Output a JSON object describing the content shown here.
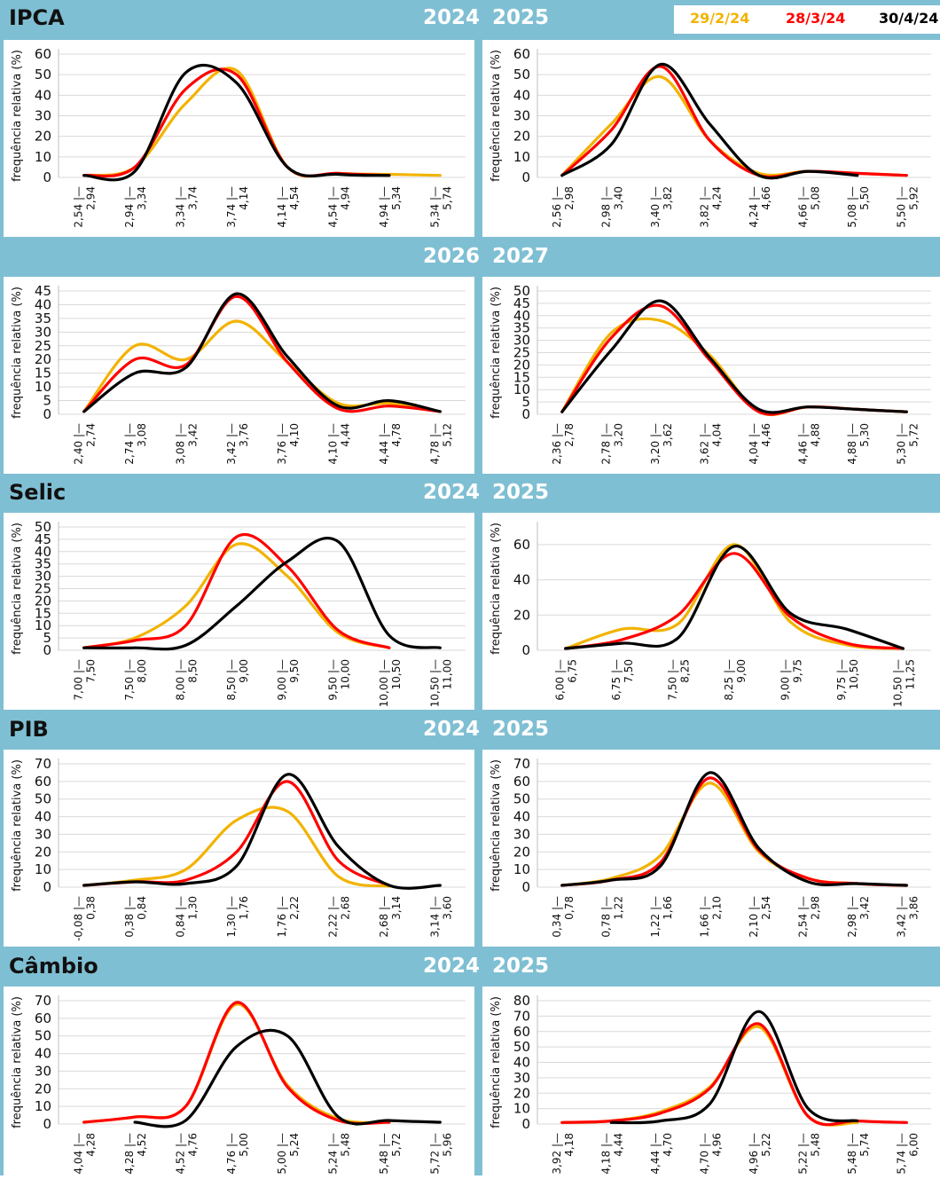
{
  "legend": [
    {
      "label": "29/2/24",
      "color": "#f2b300"
    },
    {
      "label": "28/3/24",
      "color": "#ff0000"
    },
    {
      "label": "30/4/24",
      "color": "#000000"
    }
  ],
  "ylabel": "frequência relativa (%)",
  "sections": [
    {
      "title": "IPCA",
      "years": [
        "2024",
        "2025"
      ]
    },
    {
      "title": "",
      "years": [
        "2026",
        "2027"
      ]
    },
    {
      "title": "Selic",
      "years": [
        "2024",
        "2025"
      ]
    },
    {
      "title": "PIB",
      "years": [
        "2024",
        "2025"
      ]
    },
    {
      "title": "Câmbio",
      "years": [
        "2024",
        "2025"
      ]
    }
  ],
  "chart_data": [
    {
      "type": "line",
      "variable": "IPCA",
      "year": "2024",
      "ylabel": "frequência relativa (%)",
      "ylim": [
        0,
        60
      ],
      "yticks": [
        0,
        10,
        20,
        30,
        40,
        50,
        60
      ],
      "categories": [
        "2,54 |— 2,94",
        "2,94 |— 3,34",
        "3,34 |— 3,74",
        "3,74 |— 4,14",
        "4,14 |— 4,54",
        "4,54 |— 4,94",
        "4,94 |— 5,34",
        "5,34 |— 5,74"
      ],
      "series": [
        {
          "name": "29/2/24",
          "values": [
            1,
            5,
            36,
            52,
            5,
            2,
            1.5,
            1
          ]
        },
        {
          "name": "28/3/24",
          "values": [
            1,
            5,
            43,
            50,
            5,
            2,
            1,
            null
          ]
        },
        {
          "name": "30/4/24",
          "values": [
            1,
            3,
            51,
            46,
            5,
            1.5,
            1,
            null
          ]
        }
      ]
    },
    {
      "type": "line",
      "variable": "IPCA",
      "year": "2025",
      "ylabel": "frequência relativa (%)",
      "ylim": [
        0,
        60
      ],
      "yticks": [
        0,
        10,
        20,
        30,
        40,
        50,
        60
      ],
      "categories": [
        "2,56 |— 2,98",
        "2,98 |— 3,40",
        "3,40 |— 3,82",
        "3,82 |— 4,24",
        "4,24 |— 4,66",
        "4,66 |— 5,08",
        "5,08 |— 5,50",
        "5,50 |— 5,92"
      ],
      "series": [
        {
          "name": "29/2/24",
          "values": [
            1,
            26,
            49,
            18,
            2,
            3,
            2,
            1
          ]
        },
        {
          "name": "28/3/24",
          "values": [
            1,
            23,
            54,
            18,
            1,
            3,
            2,
            1
          ]
        },
        {
          "name": "30/4/24",
          "values": [
            1,
            16,
            55,
            26,
            1,
            3,
            1,
            null
          ]
        }
      ]
    },
    {
      "type": "line",
      "variable": "IPCA",
      "year": "2026",
      "ylabel": "frequência relativa (%)",
      "ylim": [
        0,
        45
      ],
      "yticks": [
        0,
        5,
        10,
        15,
        20,
        25,
        30,
        35,
        40,
        45
      ],
      "categories": [
        "2,40 |— 2,74",
        "2,74 |— 3,08",
        "3,08 |— 3,42",
        "3,42 |— 3,76",
        "3,76 |— 4,10",
        "4,10 |— 4,44",
        "4,44 |— 4,78",
        "4,78 |— 5,12"
      ],
      "series": [
        {
          "name": "29/2/24",
          "values": [
            1,
            25,
            20,
            34,
            19,
            4,
            4,
            1
          ]
        },
        {
          "name": "28/3/24",
          "values": [
            1,
            20,
            18,
            43,
            19,
            2,
            3,
            1
          ]
        },
        {
          "name": "30/4/24",
          "values": [
            1,
            15,
            17,
            44,
            21,
            3,
            5,
            1
          ]
        }
      ]
    },
    {
      "type": "line",
      "variable": "IPCA",
      "year": "2027",
      "ylabel": "frequência relativa (%)",
      "ylim": [
        0,
        50
      ],
      "yticks": [
        0,
        5,
        10,
        15,
        20,
        25,
        30,
        35,
        40,
        45,
        50
      ],
      "categories": [
        "2,36 |— 2,78",
        "2,78 |— 3,20",
        "3,20 |— 3,62",
        "3,62 |— 4,04",
        "4,04 |— 4,46",
        "4,46 |— 4,88",
        "4,88 |— 5,30",
        "5,30 |— 5,72"
      ],
      "series": [
        {
          "name": "29/2/24",
          "values": [
            1,
            33,
            38,
            24,
            1,
            3,
            2,
            1
          ]
        },
        {
          "name": "28/3/24",
          "values": [
            1,
            31,
            44,
            22,
            1,
            3,
            2,
            1
          ]
        },
        {
          "name": "30/4/24",
          "values": [
            1,
            26,
            46,
            23,
            2,
            3,
            2,
            1
          ]
        }
      ]
    },
    {
      "type": "line",
      "variable": "Selic",
      "year": "2024",
      "ylabel": "frequência relativa (%)",
      "ylim": [
        0,
        50
      ],
      "yticks": [
        0,
        5,
        10,
        15,
        20,
        25,
        30,
        35,
        40,
        45,
        50
      ],
      "categories": [
        "7,00 |— 7,50",
        "7,50 |— 8,00",
        "8,00 |— 8,50",
        "8,50 |— 9,00",
        "9,00 |— 9,50",
        "9,50 |— 10,00",
        "10,00 |— 10,50",
        "10,50 |— 11,00"
      ],
      "series": [
        {
          "name": "29/2/24",
          "values": [
            1,
            5,
            18,
            43,
            30,
            7,
            1,
            null
          ]
        },
        {
          "name": "28/3/24",
          "values": [
            1,
            4,
            10,
            46,
            34,
            8,
            1,
            null
          ]
        },
        {
          "name": "30/4/24",
          "values": [
            1,
            1,
            2,
            18,
            36,
            44,
            6,
            1
          ]
        }
      ]
    },
    {
      "type": "line",
      "variable": "Selic",
      "year": "2025",
      "ylabel": "frequência relativa (%)",
      "ylim": [
        0,
        70
      ],
      "yticks": [
        0,
        20,
        40,
        60
      ],
      "categories": [
        "6,00 |— 6,75",
        "6,75 |— 7,50",
        "7,50 |— 8,25",
        "8,25 |— 9,00",
        "9,00 |— 9,75",
        "9,75 |— 10,50",
        "10,50 |— 11,25"
      ],
      "series": [
        {
          "name": "29/2/24",
          "values": [
            1,
            12,
            15,
            60,
            16,
            3,
            1
          ]
        },
        {
          "name": "28/3/24",
          "values": [
            1,
            6,
            20,
            55,
            19,
            4,
            1
          ]
        },
        {
          "name": "30/4/24",
          "values": [
            1,
            4,
            7,
            59,
            21,
            12,
            1
          ]
        }
      ]
    },
    {
      "type": "line",
      "variable": "PIB",
      "year": "2024",
      "ylabel": "frequência relativa (%)",
      "ylim": [
        0,
        70
      ],
      "yticks": [
        0,
        10,
        20,
        30,
        40,
        50,
        60,
        70
      ],
      "categories": [
        "-0,08 |— 0,38",
        "0,38 |— 0,84",
        "0,84 |— 1,30",
        "1,30 |— 1,76",
        "1,76 |— 2,22",
        "2,22 |— 2,68",
        "2,68 |— 3,14",
        "3,14 |— 3,60"
      ],
      "series": [
        {
          "name": "29/2/24",
          "values": [
            1,
            4,
            10,
            38,
            43,
            6,
            0.5,
            null
          ]
        },
        {
          "name": "28/3/24",
          "values": [
            1,
            3,
            4,
            20,
            60,
            15,
            1,
            null
          ]
        },
        {
          "name": "30/4/24",
          "values": [
            1,
            3,
            2,
            12,
            64,
            23,
            1,
            1
          ]
        }
      ]
    },
    {
      "type": "line",
      "variable": "PIB",
      "year": "2025",
      "ylabel": "frequência relativa (%)",
      "ylim": [
        0,
        70
      ],
      "yticks": [
        0,
        10,
        20,
        30,
        40,
        50,
        60,
        70
      ],
      "categories": [
        "0,34 |— 0,78",
        "0,78 |— 1,22",
        "1,22 |— 1,66",
        "1,66 |— 2,10",
        "2,10 |— 2,54",
        "2,54 |— 2,98",
        "2,98 |— 3,42",
        "3,42 |— 3,86"
      ],
      "series": [
        {
          "name": "29/2/24",
          "values": [
            1,
            5,
            18,
            59,
            20,
            5,
            2,
            1
          ]
        },
        {
          "name": "28/3/24",
          "values": [
            1,
            4,
            14,
            62,
            21,
            5,
            2,
            1
          ]
        },
        {
          "name": "30/4/24",
          "values": [
            1,
            4,
            12,
            65,
            22,
            3,
            2,
            1
          ]
        }
      ]
    },
    {
      "type": "line",
      "variable": "Câmbio",
      "year": "2024",
      "ylabel": "frequência relativa (%)",
      "ylim": [
        0,
        70
      ],
      "yticks": [
        0,
        10,
        20,
        30,
        40,
        50,
        60,
        70
      ],
      "categories": [
        "4,04 |— 4,28",
        "4,28 |— 4,52",
        "4,52 |— 4,76",
        "4,76 |— 5,00",
        "5,00 |— 5,24",
        "5,24 |— 5,48",
        "5,48 |— 5,72",
        "5,72 |— 5,96"
      ],
      "series": [
        {
          "name": "29/2/24",
          "values": [
            1,
            4,
            10,
            68,
            22,
            3,
            1,
            null
          ]
        },
        {
          "name": "28/3/24",
          "values": [
            1,
            4,
            10,
            69,
            21,
            2,
            1,
            null
          ]
        },
        {
          "name": "30/4/24",
          "values": [
            null,
            1,
            2,
            44,
            50,
            4,
            2,
            1
          ]
        }
      ]
    },
    {
      "type": "line",
      "variable": "Câmbio",
      "year": "2025",
      "ylabel": "frequência relativa (%)",
      "ylim": [
        0,
        80
      ],
      "yticks": [
        0,
        10,
        20,
        30,
        40,
        50,
        60,
        70,
        80
      ],
      "categories": [
        "3,92 |— 4,18",
        "4,18 |— 4,44",
        "4,44 |— 4,70",
        "4,70 |— 4,96",
        "4,96 |— 5,22",
        "5,22 |— 5,48",
        "5,48 |— 5,74",
        "5,74 |— 6,00"
      ],
      "series": [
        {
          "name": "29/2/24",
          "values": [
            1,
            2,
            8,
            24,
            63,
            5,
            1,
            null
          ]
        },
        {
          "name": "28/3/24",
          "values": [
            1,
            2,
            7,
            23,
            65,
            5,
            2,
            1
          ]
        },
        {
          "name": "30/4/24",
          "values": [
            null,
            1,
            2,
            13,
            73,
            10,
            2,
            null
          ]
        }
      ]
    }
  ]
}
